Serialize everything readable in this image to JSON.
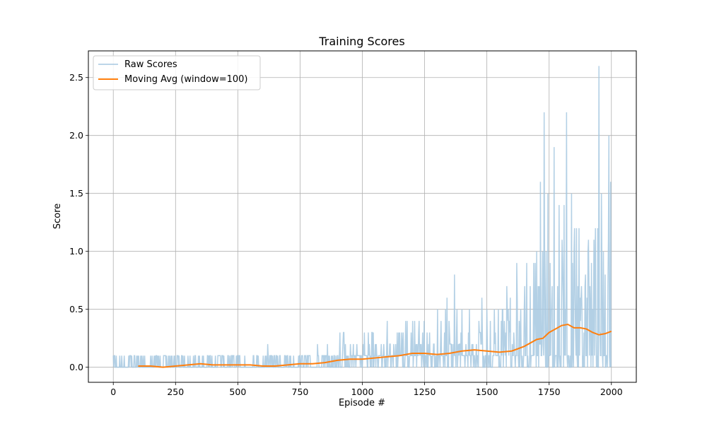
{
  "chart_data": {
    "type": "line",
    "title": "Training Scores",
    "xlabel": "Episode #",
    "ylabel": "Score",
    "xlim": [
      -100,
      2100
    ],
    "ylim": [
      -0.13,
      2.73
    ],
    "xticks": [
      0,
      250,
      500,
      750,
      1000,
      1250,
      1500,
      1750,
      2000
    ],
    "xtick_labels": [
      "0",
      "250",
      "500",
      "750",
      "1000",
      "1250",
      "1500",
      "1750",
      "2000"
    ],
    "yticks": [
      0.0,
      0.5,
      1.0,
      1.5,
      2.0,
      2.5
    ],
    "ytick_labels": [
      "0.0",
      "0.5",
      "1.0",
      "1.5",
      "2.0",
      "2.5"
    ],
    "grid": true,
    "legend_position": "upper-left",
    "colors": {
      "raw": "#a6c8e0",
      "avg": "#ff7f0e"
    },
    "series": [
      {
        "name": "Raw Scores",
        "x_start": 0,
        "x_step": 1,
        "values_description_omitted": false,
        "segments": [
          {
            "from": 0,
            "to": 100,
            "low": 0.0,
            "high": 0.1
          },
          {
            "from": 100,
            "to": 500,
            "low": 0.0,
            "high": 0.1
          },
          {
            "from": 500,
            "to": 900,
            "low": 0.0,
            "high": 0.1
          },
          {
            "from": 900,
            "to": 1100,
            "low": 0.0,
            "high": 0.3
          },
          {
            "from": 1100,
            "to": 1300,
            "low": 0.0,
            "high": 0.4
          },
          {
            "from": 1300,
            "to": 1500,
            "low": 0.0,
            "high": 0.5
          },
          {
            "from": 1500,
            "to": 1650,
            "low": 0.0,
            "high": 0.6
          },
          {
            "from": 1650,
            "to": 1800,
            "low": 0.0,
            "high": 1.0
          },
          {
            "from": 1800,
            "to": 2000,
            "low": 0.0,
            "high": 1.2
          }
        ],
        "spikes": [
          [
            620,
            0.2
          ],
          [
            820,
            0.2
          ],
          [
            860,
            0.2
          ],
          [
            1040,
            0.3
          ],
          [
            1100,
            0.4
          ],
          [
            1180,
            0.4
          ],
          [
            1340,
            0.6
          ],
          [
            1370,
            0.8
          ],
          [
            1480,
            0.6
          ],
          [
            1530,
            0.5
          ],
          [
            1580,
            0.7
          ],
          [
            1620,
            0.9
          ],
          [
            1660,
            0.9
          ],
          [
            1700,
            1.0
          ],
          [
            1715,
            1.6
          ],
          [
            1730,
            2.2
          ],
          [
            1745,
            1.5
          ],
          [
            1770,
            1.9
          ],
          [
            1790,
            1.4
          ],
          [
            1810,
            1.4
          ],
          [
            1820,
            2.2
          ],
          [
            1840,
            1.5
          ],
          [
            1860,
            1.2
          ],
          [
            1880,
            0.7
          ],
          [
            1930,
            1.1
          ],
          [
            1945,
            1.2
          ],
          [
            1950,
            2.6
          ],
          [
            1960,
            1.5
          ],
          [
            1975,
            0.8
          ],
          [
            1990,
            2.0
          ],
          [
            1997,
            1.6
          ]
        ]
      },
      {
        "name": "Moving Avg (window=100)",
        "x": [
          100,
          150,
          200,
          250,
          300,
          350,
          400,
          450,
          500,
          550,
          600,
          650,
          700,
          750,
          800,
          850,
          900,
          950,
          1000,
          1050,
          1100,
          1150,
          1200,
          1250,
          1300,
          1350,
          1400,
          1450,
          1500,
          1550,
          1600,
          1650,
          1700,
          1725,
          1750,
          1775,
          1800,
          1825,
          1850,
          1875,
          1900,
          1925,
          1950,
          1975,
          2000
        ],
        "values": [
          0.01,
          0.01,
          0.0,
          0.01,
          0.02,
          0.03,
          0.02,
          0.02,
          0.02,
          0.02,
          0.01,
          0.01,
          0.02,
          0.03,
          0.03,
          0.04,
          0.06,
          0.07,
          0.07,
          0.08,
          0.09,
          0.1,
          0.12,
          0.12,
          0.11,
          0.12,
          0.14,
          0.15,
          0.14,
          0.13,
          0.14,
          0.18,
          0.24,
          0.25,
          0.3,
          0.33,
          0.36,
          0.37,
          0.34,
          0.34,
          0.33,
          0.3,
          0.28,
          0.29,
          0.31
        ]
      }
    ]
  }
}
